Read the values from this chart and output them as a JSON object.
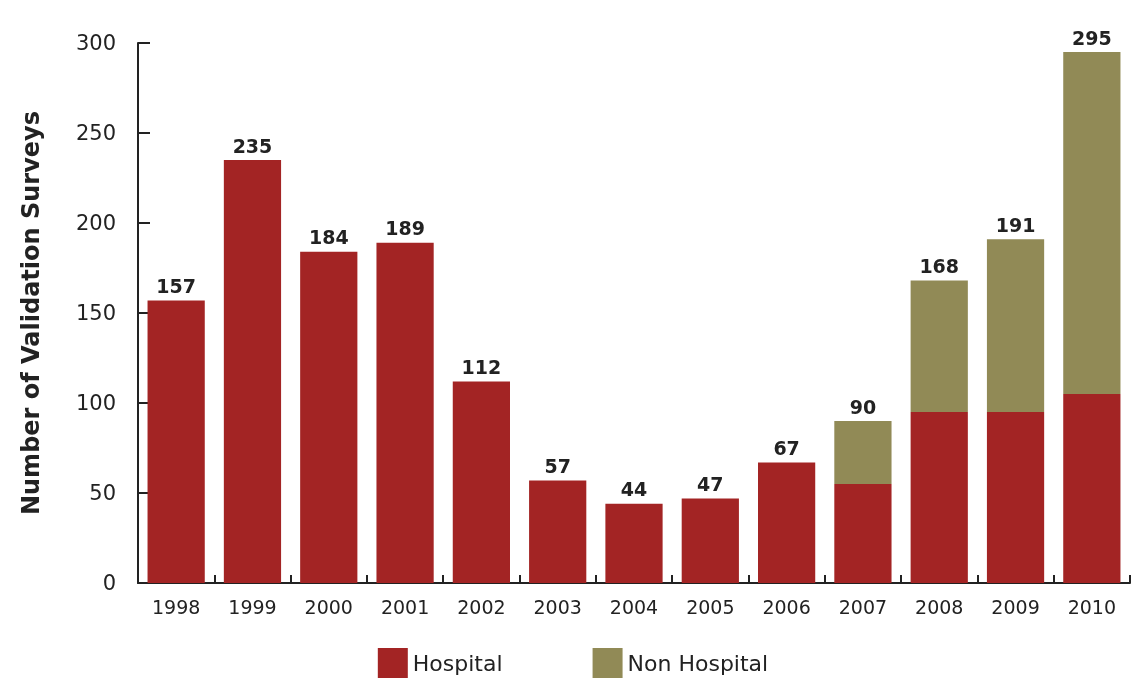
{
  "chart_data": {
    "type": "bar",
    "ylabel": "Number of Validation Surveys",
    "categories": [
      "1998",
      "1999",
      "2000",
      "2001",
      "2002",
      "2003",
      "2004",
      "2005",
      "2006",
      "2007",
      "2008",
      "2009",
      "2010"
    ],
    "stacked": true,
    "series": [
      {
        "name": "Hospital",
        "color": "#a32424",
        "values": [
          157,
          235,
          184,
          189,
          112,
          57,
          44,
          47,
          67,
          55,
          95,
          95,
          105
        ]
      },
      {
        "name": "Non Hospital",
        "color": "#918a56",
        "values": [
          null,
          null,
          null,
          null,
          null,
          null,
          null,
          null,
          null,
          35,
          73,
          96,
          190
        ]
      }
    ],
    "totals": [
      "157",
      "235",
      "184",
      "189",
      "112",
      "57",
      "44",
      "47",
      "67",
      "90",
      "168",
      "191",
      "295"
    ],
    "ylim": [
      0,
      300
    ],
    "yticks": [
      0,
      50,
      100,
      150,
      200,
      250,
      300
    ],
    "grid": false,
    "legend": "bottom"
  }
}
